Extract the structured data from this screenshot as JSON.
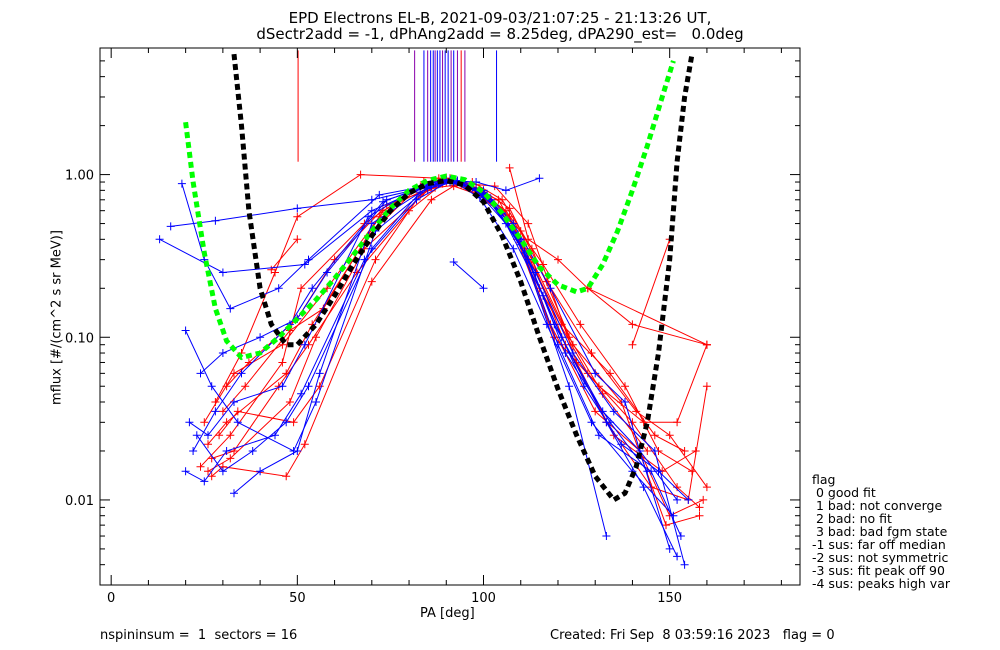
{
  "header": {
    "title_line1": "EPD Electrons EL-B, 2021-09-03/21:07:25 - 21:13:26 UT,",
    "title_line2": "dSectr2add = -1, dPhAng2add = 8.25deg, dPA290_est=   0.0deg"
  },
  "footer": {
    "left": "nspininsum =  1  sectors = 16",
    "right": "Created: Fri Sep  8 03:59:16 2023   flag = 0"
  },
  "legend": {
    "title": "flag",
    "items": [
      " 0 good fit",
      " 1 bad: not converge",
      " 2 bad: no fit",
      " 3 bad: bad fgm state",
      "-1 sus: far off median",
      "-2 sus: not symmetric",
      "-3 sus: fit peak off 90",
      "-4 sus: peaks high var"
    ]
  },
  "colors": {
    "red": "#ff0000",
    "blue": "#0000ff",
    "purple": "#8800aa",
    "green": "#00ff00",
    "black": "#000000"
  },
  "chart_data": {
    "type": "line",
    "xlabel": "PA [deg]",
    "ylabel": "mflux [#/(cm^2 s sr MeV)]",
    "xlim": [
      -3,
      185
    ],
    "ylim": [
      0.003,
      6.0
    ],
    "yscale": "log",
    "xticks": [
      0,
      50,
      100,
      150
    ],
    "yticks": [
      0.01,
      0.1,
      1.0
    ],
    "ytick_labels": [
      "0.01",
      "0.10",
      "1.00"
    ],
    "fits": [
      {
        "color": "green",
        "x": [
          20,
          22,
          25,
          28,
          31,
          35,
          40,
          45,
          50,
          55,
          60,
          65,
          70,
          75,
          80,
          85,
          90,
          95,
          100,
          105,
          110,
          115,
          120,
          125,
          128,
          132,
          136,
          140,
          144,
          148,
          151
        ],
        "y": [
          2.1,
          0.9,
          0.33,
          0.15,
          0.095,
          0.075,
          0.08,
          0.1,
          0.13,
          0.17,
          0.23,
          0.32,
          0.45,
          0.62,
          0.8,
          0.92,
          0.98,
          0.93,
          0.78,
          0.58,
          0.4,
          0.27,
          0.21,
          0.19,
          0.2,
          0.28,
          0.45,
          0.8,
          1.5,
          3.0,
          5.0
        ]
      },
      {
        "color": "black",
        "x": [
          33,
          35,
          37,
          40,
          43,
          47,
          50,
          55,
          60,
          65,
          70,
          75,
          80,
          85,
          90,
          95,
          100,
          105,
          110,
          115,
          120,
          125,
          130,
          135,
          138,
          141,
          144,
          147,
          150,
          152,
          154,
          156
        ],
        "y": [
          5.5,
          2.0,
          0.6,
          0.2,
          0.12,
          0.09,
          0.09,
          0.12,
          0.18,
          0.28,
          0.42,
          0.6,
          0.77,
          0.88,
          0.92,
          0.86,
          0.68,
          0.42,
          0.22,
          0.1,
          0.048,
          0.025,
          0.014,
          0.01,
          0.011,
          0.016,
          0.03,
          0.08,
          0.3,
          1.2,
          3.0,
          5.5
        ]
      }
    ],
    "markers": [
      {
        "color": "red",
        "x": [
          50.2,
          50.2
        ],
        "y": [
          1.2,
          5.8
        ]
      },
      {
        "color": "purple",
        "x": [
          81.5,
          81.5
        ],
        "y": [
          1.2,
          5.8
        ]
      },
      {
        "color": "blue",
        "x": [
          84,
          84
        ],
        "y": [
          1.2,
          5.8
        ]
      },
      {
        "color": "purple",
        "x": [
          85,
          85
        ],
        "y": [
          1.2,
          5.8
        ]
      },
      {
        "color": "blue",
        "x": [
          85.8,
          85.8
        ],
        "y": [
          1.2,
          5.8
        ]
      },
      {
        "color": "blue",
        "x": [
          86.5,
          86.5
        ],
        "y": [
          1.2,
          5.8
        ]
      },
      {
        "color": "purple",
        "x": [
          87,
          87
        ],
        "y": [
          1.2,
          5.8
        ]
      },
      {
        "color": "blue",
        "x": [
          87.6,
          87.6
        ],
        "y": [
          1.2,
          5.8
        ]
      },
      {
        "color": "blue",
        "x": [
          88.3,
          88.3
        ],
        "y": [
          1.2,
          5.8
        ]
      },
      {
        "color": "purple",
        "x": [
          89,
          89
        ],
        "y": [
          1.2,
          5.8
        ]
      },
      {
        "color": "blue",
        "x": [
          89.7,
          89.7
        ],
        "y": [
          1.2,
          5.8
        ]
      },
      {
        "color": "blue",
        "x": [
          90.5,
          90.5
        ],
        "y": [
          1.2,
          5.8
        ]
      },
      {
        "color": "purple",
        "x": [
          91.3,
          91.3
        ],
        "y": [
          1.2,
          5.8
        ]
      },
      {
        "color": "blue",
        "x": [
          92,
          92
        ],
        "y": [
          1.2,
          5.8
        ]
      },
      {
        "color": "purple",
        "x": [
          93,
          93
        ],
        "y": [
          1.2,
          5.8
        ]
      },
      {
        "color": "red",
        "x": [
          94,
          94
        ],
        "y": [
          1.2,
          5.8
        ]
      },
      {
        "color": "purple",
        "x": [
          95,
          95
        ],
        "y": [
          1.2,
          5.8
        ]
      },
      {
        "color": "blue",
        "x": [
          103.5,
          103.5
        ],
        "y": [
          1.2,
          5.8
        ]
      }
    ],
    "series": [
      {
        "color": "red",
        "x": [
          26,
          32,
          48,
          55,
          68,
          85,
          91,
          100,
          107,
          115,
          128,
          140,
          152,
          158
        ],
        "y": [
          0.015,
          0.018,
          0.04,
          0.1,
          0.35,
          0.8,
          0.95,
          0.8,
          0.55,
          0.2,
          0.06,
          0.03,
          0.012,
          0.009
        ]
      },
      {
        "color": "red",
        "x": [
          27,
          30,
          47,
          52,
          70,
          86,
          92,
          101,
          108,
          118,
          130,
          142,
          150,
          159
        ],
        "y": [
          0.014,
          0.016,
          0.014,
          0.022,
          0.22,
          0.7,
          0.85,
          0.72,
          0.5,
          0.12,
          0.035,
          0.02,
          0.008,
          0.01
        ]
      },
      {
        "color": "red",
        "x": [
          25,
          33,
          46,
          58,
          72,
          84,
          93,
          99,
          110,
          122,
          133,
          145,
          155,
          160
        ],
        "y": [
          0.03,
          0.06,
          0.09,
          0.2,
          0.55,
          0.9,
          0.92,
          0.75,
          0.45,
          0.09,
          0.03,
          0.012,
          0.01,
          0.05
        ]
      },
      {
        "color": "red",
        "x": [
          28,
          35,
          44,
          50,
          67,
          88,
          95,
          103,
          112,
          125,
          135,
          148,
          157
        ],
        "y": [
          0.04,
          0.08,
          0.25,
          0.55,
          1.0,
          0.95,
          0.88,
          0.85,
          0.5,
          0.07,
          0.025,
          0.015,
          0.02
        ]
      },
      {
        "color": "red",
        "x": [
          26,
          31,
          47,
          54,
          69,
          82,
          90,
          98,
          106,
          116,
          126,
          138,
          147,
          156
        ],
        "y": [
          0.022,
          0.03,
          0.06,
          0.12,
          0.42,
          0.82,
          0.9,
          0.82,
          0.6,
          0.28,
          0.12,
          0.05,
          0.02,
          0.015
        ]
      },
      {
        "color": "red",
        "x": [
          29,
          34,
          49,
          56,
          71,
          83,
          91,
          100,
          109,
          119,
          131,
          143,
          152,
          160
        ],
        "y": [
          0.025,
          0.035,
          0.03,
          0.05,
          0.3,
          0.75,
          0.93,
          0.78,
          0.4,
          0.1,
          0.05,
          0.03,
          0.03,
          0.09
        ]
      },
      {
        "color": "red",
        "x": [
          27,
          33,
          45,
          53,
          66,
          80,
          89,
          97,
          105,
          113,
          124,
          137,
          149,
          158
        ],
        "y": [
          0.018,
          0.02,
          0.05,
          0.09,
          0.25,
          0.6,
          0.88,
          0.9,
          0.7,
          0.35,
          0.09,
          0.04,
          0.007,
          0.008
        ]
      },
      {
        "color": "red",
        "x": [
          30,
          36,
          48,
          57,
          73,
          86,
          92,
          102,
          111,
          121,
          134,
          146,
          154
        ],
        "y": [
          0.035,
          0.05,
          0.11,
          0.15,
          0.6,
          0.85,
          0.9,
          0.68,
          0.35,
          0.12,
          0.06,
          0.025,
          0.02
        ]
      },
      {
        "color": "red",
        "x": [
          24,
          32,
          46,
          51,
          68,
          84,
          90,
          99,
          107,
          117,
          129,
          141,
          150,
          160
        ],
        "y": [
          0.016,
          0.025,
          0.07,
          0.2,
          0.5,
          0.88,
          0.95,
          0.82,
          0.62,
          0.22,
          0.08,
          0.035,
          0.025,
          0.012
        ]
      },
      {
        "color": "red",
        "x": [
          31,
          37,
          50,
          60,
          74,
          87,
          94,
          104,
          113,
          123,
          132,
          144
        ],
        "y": [
          0.05,
          0.07,
          0.13,
          0.3,
          0.65,
          0.83,
          0.87,
          0.7,
          0.3,
          0.1,
          0.045,
          0.02
        ]
      },
      {
        "color": "red",
        "x": [
          140,
          150
        ],
        "y": [
          0.09,
          0.4
        ]
      },
      {
        "color": "red",
        "x": [
          128,
          160
        ],
        "y": [
          0.2,
          0.09
        ]
      },
      {
        "color": "red",
        "x": [
          43,
          50
        ],
        "y": [
          0.26,
          0.4
        ]
      },
      {
        "color": "red",
        "x": [
          107,
          112,
          120,
          128,
          140,
          160
        ],
        "y": [
          1.1,
          0.4,
          0.3,
          0.2,
          0.12,
          0.09
        ]
      },
      {
        "color": "blue",
        "x": [
          13,
          30,
          52,
          70,
          85,
          90,
          98,
          106,
          115
        ],
        "y": [
          0.4,
          0.25,
          0.28,
          0.6,
          0.85,
          0.92,
          0.9,
          0.8,
          0.95
        ]
      },
      {
        "color": "blue",
        "x": [
          16,
          28,
          50,
          70,
          86,
          91,
          100,
          108,
          118,
          130,
          138,
          150
        ],
        "y": [
          0.48,
          0.52,
          0.62,
          0.7,
          0.85,
          0.9,
          0.8,
          0.5,
          0.2,
          0.06,
          0.04,
          0.005
        ]
      },
      {
        "color": "blue",
        "x": [
          19,
          25,
          32,
          45,
          53,
          72,
          88,
          93,
          101,
          110,
          119,
          132,
          142,
          152
        ],
        "y": [
          0.88,
          0.3,
          0.15,
          0.2,
          0.3,
          0.75,
          0.88,
          0.92,
          0.75,
          0.4,
          0.12,
          0.035,
          0.02,
          0.01
        ]
      },
      {
        "color": "blue",
        "x": [
          20,
          27,
          34,
          49,
          55,
          71,
          85,
          92,
          99,
          108,
          117,
          129,
          140,
          151
        ],
        "y": [
          0.11,
          0.05,
          0.03,
          0.02,
          0.04,
          0.45,
          0.82,
          0.9,
          0.72,
          0.35,
          0.12,
          0.03,
          0.015,
          0.008
        ]
      },
      {
        "color": "blue",
        "x": [
          21,
          26,
          33,
          46,
          52,
          69,
          84,
          90,
          98,
          106,
          116,
          127,
          137,
          147,
          155
        ],
        "y": [
          0.03,
          0.025,
          0.04,
          0.05,
          0.09,
          0.55,
          0.87,
          0.92,
          0.8,
          0.5,
          0.18,
          0.05,
          0.022,
          0.015,
          0.01
        ]
      },
      {
        "color": "blue",
        "x": [
          22,
          28,
          35,
          48,
          54,
          73,
          87,
          91,
          100,
          109,
          120,
          131,
          145,
          153
        ],
        "y": [
          0.02,
          0.035,
          0.06,
          0.12,
          0.2,
          0.68,
          0.9,
          0.93,
          0.76,
          0.42,
          0.09,
          0.025,
          0.015,
          0.006
        ]
      },
      {
        "color": "blue",
        "x": [
          23,
          30,
          38,
          47,
          53,
          70,
          83,
          89,
          97,
          105,
          114,
          124,
          135,
          146,
          154
        ],
        "y": [
          0.025,
          0.015,
          0.02,
          0.03,
          0.05,
          0.35,
          0.78,
          0.91,
          0.83,
          0.58,
          0.25,
          0.08,
          0.035,
          0.02,
          0.004
        ]
      },
      {
        "color": "blue",
        "x": [
          20,
          25,
          31,
          44,
          51,
          68,
          82,
          92,
          102,
          111,
          121,
          133,
          143,
          152
        ],
        "y": [
          0.015,
          0.013,
          0.02,
          0.025,
          0.045,
          0.3,
          0.7,
          0.94,
          0.7,
          0.33,
          0.1,
          0.03,
          0.012,
          0.0045
        ]
      },
      {
        "color": "blue",
        "x": [
          24,
          30,
          40,
          50,
          58,
          74,
          88,
          95,
          103,
          112,
          122,
          134,
          144
        ],
        "y": [
          0.06,
          0.08,
          0.1,
          0.13,
          0.25,
          0.7,
          0.88,
          0.9,
          0.65,
          0.3,
          0.08,
          0.03,
          0.015
        ]
      },
      {
        "color": "blue",
        "x": [
          33,
          40,
          50,
          56,
          70,
          86,
          90,
          100,
          110,
          123,
          133
        ],
        "y": [
          0.011,
          0.015,
          0.02,
          0.06,
          0.5,
          0.86,
          0.93,
          0.77,
          0.37,
          0.05,
          0.006
        ]
      },
      {
        "color": "blue",
        "x": [
          92,
          100
        ],
        "y": [
          0.29,
          0.2
        ]
      }
    ]
  }
}
